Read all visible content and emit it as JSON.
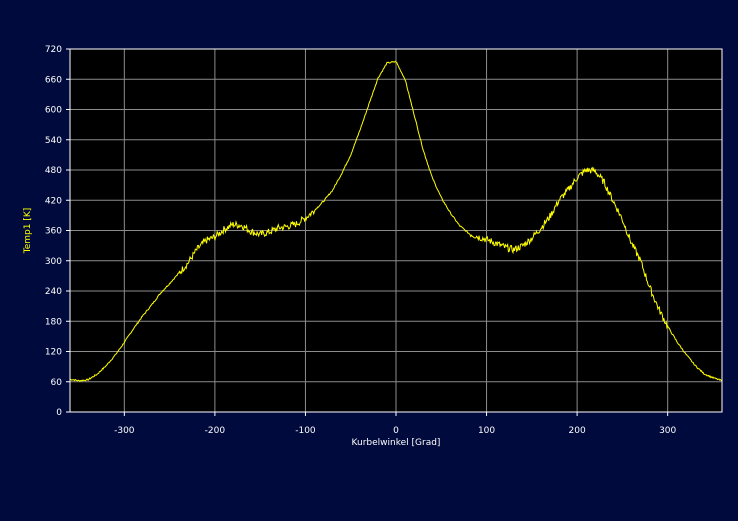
{
  "colors": {
    "background": "#000a3c",
    "plot_background": "#000000",
    "grid": "#8c8c8c",
    "axis_frame": "#ffffff",
    "line": "#ffff00",
    "label_text": "#ffff00",
    "tick_text": "#ffffff"
  },
  "chart_data": {
    "type": "line",
    "title": "",
    "xlabel": "Kurbelwinkel [Grad]",
    "ylabel": "Temp1 [K]",
    "xlim": [
      -360,
      360
    ],
    "ylim": [
      0,
      720
    ],
    "xticks": [
      -300,
      -200,
      -100,
      0,
      100,
      200,
      300
    ],
    "yticks": [
      0,
      60,
      120,
      180,
      240,
      300,
      360,
      420,
      480,
      540,
      600,
      660,
      720
    ],
    "grid": true,
    "legend": "none",
    "series": [
      {
        "x": [
          -360,
          -350,
          -340,
          -330,
          -320,
          -310,
          -300,
          -290,
          -280,
          -270,
          -260,
          -250,
          -240,
          -230,
          -220,
          -210,
          -200,
          -190,
          -180,
          -170,
          -160,
          -150,
          -140,
          -130,
          -120,
          -110,
          -100,
          -90,
          -80,
          -70,
          -60,
          -50,
          -40,
          -30,
          -20,
          -10,
          0,
          10,
          20,
          30,
          40,
          50,
          60,
          70,
          80,
          90,
          100,
          110,
          120,
          130,
          140,
          150,
          160,
          170,
          180,
          190,
          200,
          210,
          220,
          230,
          240,
          250,
          260,
          270,
          280,
          290,
          300,
          310,
          320,
          330,
          340,
          350,
          360
        ],
        "y": [
          65,
          62,
          64,
          75,
          92,
          113,
          138,
          165,
          190,
          212,
          236,
          255,
          275,
          295,
          322,
          340,
          347,
          362,
          372,
          370,
          358,
          352,
          357,
          365,
          368,
          373,
          385,
          400,
          418,
          440,
          473,
          510,
          558,
          610,
          662,
          692,
          695,
          660,
          590,
          520,
          465,
          425,
          395,
          370,
          355,
          348,
          342,
          335,
          327,
          322,
          330,
          345,
          365,
          388,
          420,
          440,
          465,
          480,
          478,
          455,
          418,
          382,
          335,
          300,
          248,
          205,
          170,
          140,
          115,
          93,
          76,
          68,
          62
        ]
      }
    ]
  }
}
